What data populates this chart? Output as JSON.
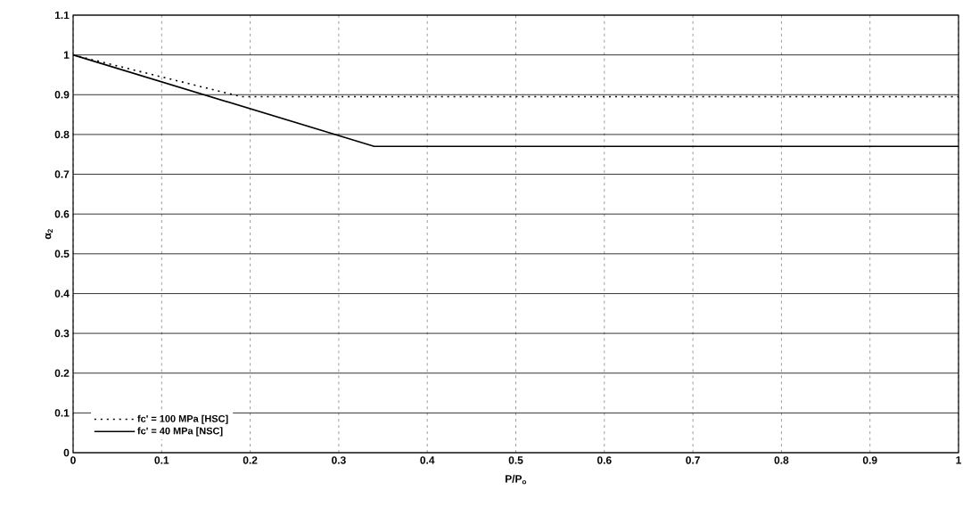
{
  "chart_data": {
    "type": "line",
    "xlabel": "P/P$_{o}$",
    "ylabel": "α$_{2}$",
    "xlim": [
      0,
      1
    ],
    "ylim": [
      0,
      1.1
    ],
    "xticks": [
      0,
      0.1,
      0.2,
      0.3,
      0.4,
      0.5,
      0.6,
      0.7,
      0.8,
      0.9,
      1
    ],
    "yticks": [
      0,
      0.1,
      0.2,
      0.3,
      0.4,
      0.5,
      0.6,
      0.7,
      0.8,
      0.9,
      1,
      1.1
    ],
    "grid": true,
    "legend": "bottom left",
    "marker": "none",
    "series": [
      {
        "name": "fc' = 100 MPa [HSC]",
        "color": "#000000",
        "line_style": "dotted",
        "x": [
          0,
          0.19,
          1
        ],
        "values": [
          1,
          0.895,
          0.895
        ]
      },
      {
        "name": "fc' = 40 MPa [NSC]",
        "color": "#000000",
        "line_style": "solid",
        "x": [
          0,
          0.34,
          1
        ],
        "values": [
          1,
          0.77,
          0.77
        ]
      }
    ]
  }
}
